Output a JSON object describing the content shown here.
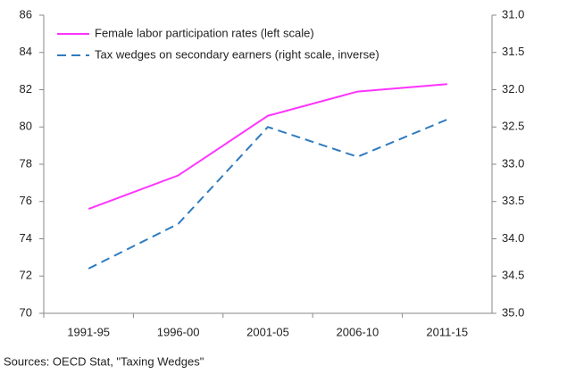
{
  "chart_data": {
    "type": "line",
    "categories": [
      "1991-95",
      "1996-00",
      "2001-05",
      "2006-10",
      "2011-15"
    ],
    "series": [
      {
        "name": "Female labor participation rates (left scale)",
        "color": "#ff33ff",
        "values": [
          75.6,
          77.4,
          80.6,
          81.9,
          82.3
        ]
      },
      {
        "name": "Tax wedges on secondary earners (right scale, inverse)",
        "color": "#2e7bbf",
        "axis": "y2",
        "dashed": true,
        "values": [
          34.4,
          33.8,
          32.5,
          32.9,
          32.4
        ]
      }
    ],
    "ylim": [
      70,
      86
    ],
    "yticks": [
      70,
      72,
      74,
      76,
      78,
      80,
      82,
      84,
      86
    ],
    "y2lim": [
      35,
      31
    ],
    "y2ticks": [
      {
        "value": 31,
        "label": "31.0"
      },
      {
        "value": 31.5,
        "label": "31.5"
      },
      {
        "value": 32,
        "label": "32.0"
      },
      {
        "value": 32.5,
        "label": "32.5"
      },
      {
        "value": 33,
        "label": "33.0"
      },
      {
        "value": 33.5,
        "label": "33.5"
      },
      {
        "value": 34,
        "label": "34.0"
      },
      {
        "value": 34.5,
        "label": "34.5"
      },
      {
        "value": 35,
        "label": "35.0"
      }
    ],
    "grid": false,
    "legend": "top-left",
    "source": "Sources: OECD Stat, \"Taxing Wedges\""
  }
}
